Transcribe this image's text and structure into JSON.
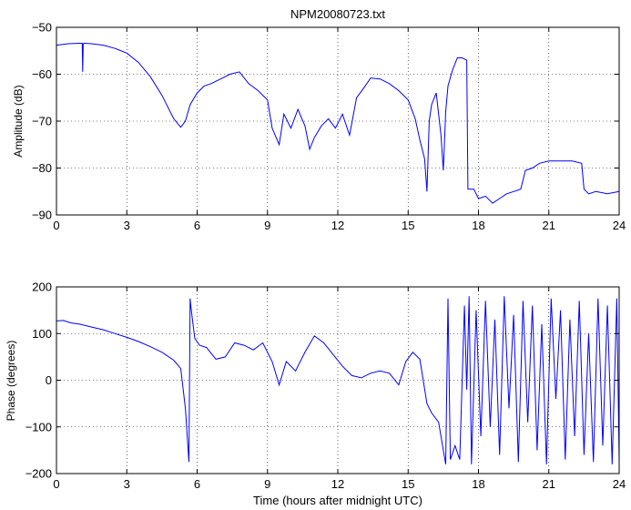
{
  "figure": {
    "title": "NPM20080723.txt",
    "line_color": "#0000ff"
  },
  "chart_data": [
    {
      "type": "line",
      "title": "NPM20080723.txt",
      "xlabel": "",
      "ylabel": "Amplitude (dB)",
      "xlim": [
        0,
        24
      ],
      "ylim": [
        -90,
        -50
      ],
      "xticks": [
        0,
        3,
        6,
        9,
        12,
        15,
        18,
        21,
        24
      ],
      "yticks": [
        -90,
        -80,
        -70,
        -60,
        -50
      ],
      "grid": true,
      "series": [
        {
          "x": [
            0,
            0.5,
            1.0,
            1.1,
            1.12,
            1.14,
            1.2,
            1.5,
            2.0,
            2.5,
            3.0,
            3.5,
            4.0,
            4.5,
            5.0,
            5.3,
            5.5,
            5.7,
            6.0,
            6.3,
            6.6,
            7.0,
            7.4,
            7.8,
            8.2,
            8.6,
            9.0,
            9.2,
            9.5,
            9.7,
            10.0,
            10.3,
            10.6,
            10.8,
            11.0,
            11.3,
            11.6,
            11.9,
            12.2,
            12.5,
            12.8,
            13.1,
            13.4,
            13.8,
            14.2,
            14.6,
            15.0,
            15.3,
            15.5,
            15.7,
            15.8,
            15.9,
            16.0,
            16.2,
            16.4,
            16.5,
            16.6,
            16.7,
            16.9,
            17.1,
            17.3,
            17.5,
            17.55,
            17.6,
            17.8,
            18.0,
            18.3,
            18.6,
            18.9,
            19.2,
            19.5,
            19.8,
            20.0,
            20.3,
            20.6,
            21.0,
            21.5,
            22.0,
            22.4,
            22.5,
            22.7,
            23.0,
            23.5,
            24.0
          ],
          "values": [
            -53.8,
            -53.5,
            -53.4,
            -53.4,
            -59.5,
            -53.5,
            -53.4,
            -53.5,
            -53.8,
            -54.5,
            -55.5,
            -57.5,
            -60.5,
            -64.5,
            -69.5,
            -71.3,
            -70.0,
            -66.5,
            -64.0,
            -62.5,
            -62.0,
            -61.0,
            -60.0,
            -59.5,
            -62.0,
            -63.5,
            -65.5,
            -71.5,
            -75.0,
            -68.5,
            -71.5,
            -67.5,
            -71.0,
            -76.0,
            -73.5,
            -71.0,
            -69.5,
            -71.5,
            -68.5,
            -73.0,
            -65.0,
            -63.0,
            -60.8,
            -61.0,
            -62.0,
            -63.5,
            -65.5,
            -69.5,
            -74.0,
            -78.0,
            -85.0,
            -70.0,
            -66.5,
            -64.0,
            -73.0,
            -80.5,
            -68.0,
            -62.5,
            -59.0,
            -56.5,
            -56.5,
            -57.0,
            -84.5,
            -84.5,
            -84.5,
            -86.5,
            -86.0,
            -87.5,
            -86.5,
            -85.5,
            -85.0,
            -84.5,
            -80.5,
            -80.0,
            -79.0,
            -78.5,
            -78.5,
            -78.5,
            -79.0,
            -84.5,
            -85.5,
            -85.0,
            -85.5,
            -85.0
          ]
        }
      ]
    },
    {
      "type": "line",
      "title": "",
      "xlabel": "Time (hours after midnight UTC)",
      "ylabel": "Phase (degrees)",
      "xlim": [
        0,
        24
      ],
      "ylim": [
        -200,
        200
      ],
      "xticks": [
        0,
        3,
        6,
        9,
        12,
        15,
        18,
        21,
        24
      ],
      "yticks": [
        -200,
        -100,
        0,
        100,
        200
      ],
      "grid": true,
      "series": [
        {
          "x": [
            0,
            0.3,
            0.6,
            1.0,
            1.5,
            2.0,
            2.5,
            3.0,
            3.5,
            4.0,
            4.5,
            5.0,
            5.3,
            5.5,
            5.65,
            5.7,
            5.75,
            5.9,
            6.1,
            6.4,
            6.8,
            7.2,
            7.6,
            8.0,
            8.4,
            8.8,
            9.2,
            9.5,
            9.8,
            10.2,
            10.6,
            11.0,
            11.4,
            11.8,
            12.2,
            12.6,
            13.0,
            13.4,
            13.8,
            14.2,
            14.6,
            14.9,
            15.2,
            15.5,
            15.8,
            16.0,
            16.3,
            16.6,
            16.7,
            16.8,
            17.0,
            17.2,
            17.4,
            17.5,
            17.6,
            17.7,
            17.9,
            18.1,
            18.3,
            18.5,
            18.7,
            18.9,
            19.1,
            19.3,
            19.5,
            19.7,
            19.9,
            20.1,
            20.3,
            20.5,
            20.7,
            20.9,
            21.1,
            21.3,
            21.5,
            21.7,
            21.9,
            22.1,
            22.3,
            22.5,
            22.7,
            22.9,
            23.1,
            23.3,
            23.5,
            23.7,
            23.9,
            24.0
          ],
          "values": [
            127,
            128,
            123,
            120,
            114,
            108,
            100,
            92,
            83,
            72,
            60,
            43,
            25,
            -60,
            -175,
            175,
            150,
            90,
            75,
            70,
            45,
            50,
            80,
            75,
            65,
            80,
            40,
            -10,
            40,
            20,
            60,
            95,
            80,
            55,
            30,
            10,
            5,
            15,
            20,
            15,
            -10,
            40,
            60,
            45,
            -50,
            -70,
            -90,
            -180,
            175,
            -170,
            -140,
            -170,
            160,
            -20,
            180,
            -180,
            150,
            -120,
            170,
            -100,
            130,
            -160,
            180,
            -60,
            140,
            -175,
            170,
            -90,
            160,
            -150,
            120,
            -180,
            175,
            -40,
            150,
            -170,
            130,
            -120,
            170,
            -160,
            100,
            -175,
            175,
            -140,
            160,
            -180,
            175,
            -170
          ]
        }
      ]
    }
  ]
}
